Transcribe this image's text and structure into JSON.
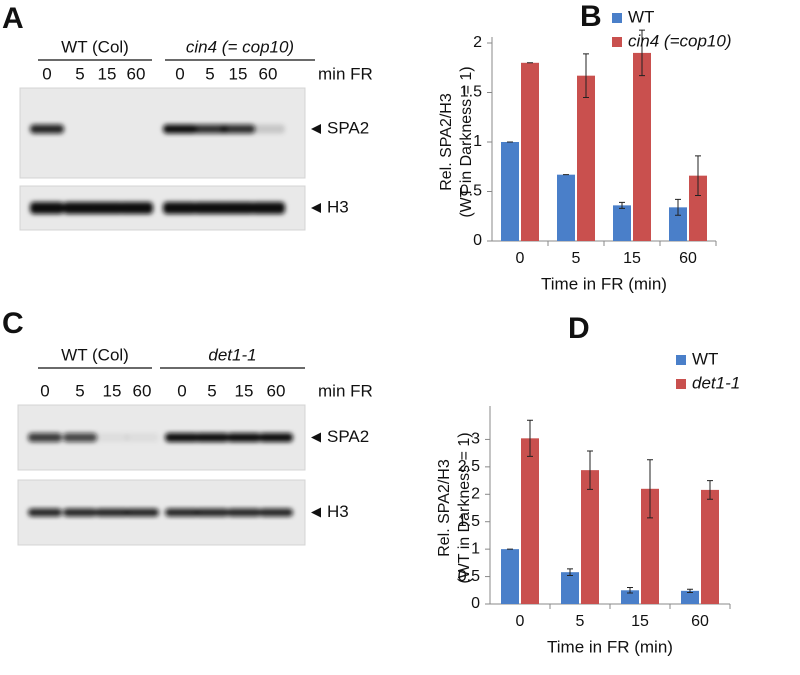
{
  "blots": [
    {
      "label": "A",
      "groups": [
        {
          "name": "WT (Col)",
          "lanes": [
            "0",
            "5",
            "15",
            "60"
          ]
        },
        {
          "name": "cin4 (= cop10)",
          "lanes": [
            "0",
            "5",
            "15",
            "60"
          ]
        }
      ],
      "unit": "min FR",
      "bands": [
        "SPA2",
        "H3"
      ]
    },
    {
      "label": "C",
      "groups": [
        {
          "name": "WT (Col)",
          "lanes": [
            "0",
            "5",
            "15",
            "60"
          ]
        },
        {
          "name": "det1-1",
          "lanes": [
            "0",
            "5",
            "15",
            "60"
          ]
        }
      ],
      "unit": "min FR",
      "bands": [
        "SPA2",
        "H3"
      ]
    }
  ],
  "chart_data": [
    {
      "type": "bar",
      "panel": "B",
      "categories": [
        "0",
        "5",
        "15",
        "60"
      ],
      "ylabel": [
        "Rel. SPA2/H3",
        "(WT in Darkness = 1)"
      ],
      "xlabel": "Time in FR (min)",
      "ylim": [
        0,
        2
      ],
      "yticks": [
        0,
        0.5,
        1,
        1.5,
        2
      ],
      "series": [
        {
          "name": "WT",
          "color": "#4a7fc9",
          "values": [
            1,
            0.67,
            0.36,
            0.34
          ],
          "errors": [
            0,
            0,
            0.03,
            0.08
          ]
        },
        {
          "name": "cin4 (=cop10)",
          "color": "#c9504e",
          "values": [
            1.8,
            1.67,
            1.9,
            0.66
          ],
          "errors": [
            0,
            0.22,
            0.23,
            0.2
          ]
        }
      ]
    },
    {
      "type": "bar",
      "panel": "D",
      "categories": [
        "0",
        "5",
        "15",
        "60"
      ],
      "ylabel": [
        "Rel. SPA2/H3",
        "(WT in Darkness = 1)"
      ],
      "xlabel": "Time in FR (min)",
      "ylim": [
        0,
        3.5
      ],
      "yticks": [
        0,
        0.5,
        1,
        1.5,
        2,
        2.5,
        3
      ],
      "series": [
        {
          "name": "WT",
          "color": "#4a7fc9",
          "values": [
            1,
            0.58,
            0.25,
            0.24
          ],
          "errors": [
            0,
            0.06,
            0.05,
            0.03
          ]
        },
        {
          "name": "det1-1",
          "color": "#c9504e",
          "values": [
            3.02,
            2.44,
            2.1,
            2.08
          ],
          "errors": [
            0.33,
            0.35,
            0.53,
            0.17
          ]
        }
      ]
    }
  ]
}
